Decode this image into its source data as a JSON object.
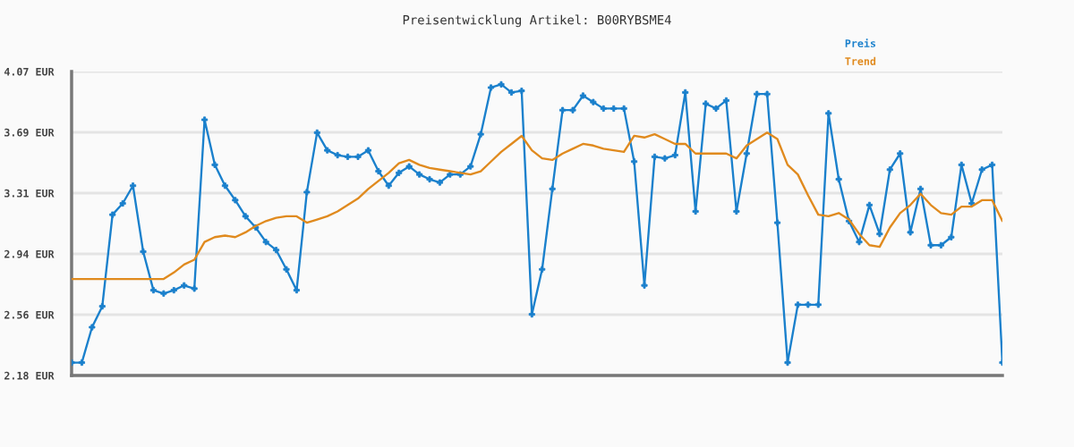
{
  "chart_data": {
    "type": "line",
    "title": "Preisentwicklung Artikel: B00RYBSME4",
    "categories": [
      null,
      null,
      null,
      null,
      null,
      null,
      null,
      null,
      null,
      null,
      null,
      null,
      null,
      null,
      null,
      null,
      null,
      null,
      null,
      null,
      null,
      null,
      null,
      null,
      null,
      null,
      null,
      null,
      null,
      null,
      null,
      null,
      null,
      null,
      null,
      null,
      null,
      null,
      null,
      null,
      null,
      null,
      null,
      null,
      null,
      null,
      null,
      null,
      null,
      null,
      null,
      null,
      null,
      null,
      null,
      null,
      null,
      null,
      null,
      null,
      null,
      null,
      null,
      null,
      null,
      null,
      null,
      null,
      null,
      null,
      null,
      null,
      null,
      null,
      null,
      null,
      null,
      null,
      null,
      null,
      null,
      null,
      null,
      null,
      null,
      null,
      null,
      null,
      null,
      null,
      null,
      null
    ],
    "series": [
      {
        "name": "Preis",
        "color": "#1a80cc",
        "marker": "cross",
        "values": [
          2.26,
          2.26,
          2.48,
          2.61,
          3.18,
          3.25,
          3.36,
          2.95,
          2.71,
          2.69,
          2.71,
          2.74,
          2.72,
          3.77,
          3.49,
          3.36,
          3.27,
          3.17,
          3.1,
          3.01,
          2.96,
          2.84,
          2.71,
          3.32,
          3.69,
          3.58,
          3.55,
          3.54,
          3.54,
          3.58,
          3.45,
          3.36,
          3.44,
          3.48,
          3.43,
          3.4,
          3.38,
          3.43,
          3.43,
          3.48,
          3.68,
          3.97,
          3.99,
          3.94,
          3.95,
          2.56,
          2.84,
          3.34,
          3.83,
          3.83,
          3.92,
          3.88,
          3.84,
          3.84,
          3.84,
          3.51,
          2.74,
          3.54,
          3.53,
          3.55,
          3.94,
          3.2,
          3.87,
          3.84,
          3.89,
          3.2,
          3.56,
          3.93,
          3.93,
          3.13,
          2.26,
          2.62,
          2.62,
          2.62,
          3.81,
          3.4,
          3.14,
          3.01,
          3.24,
          3.06,
          3.46,
          3.56,
          3.07,
          3.34,
          2.99,
          2.99,
          3.04,
          3.49,
          3.25,
          3.46,
          3.49,
          2.26
        ]
      },
      {
        "name": "Trend",
        "color": "#e08a1e",
        "marker": "none",
        "values": [
          2.78,
          2.78,
          2.78,
          2.78,
          2.78,
          2.78,
          2.78,
          2.78,
          2.78,
          2.78,
          2.82,
          2.87,
          2.9,
          3.01,
          3.04,
          3.05,
          3.04,
          3.07,
          3.11,
          3.14,
          3.16,
          3.17,
          3.17,
          3.13,
          3.15,
          3.17,
          3.2,
          3.24,
          3.28,
          3.34,
          3.39,
          3.44,
          3.5,
          3.52,
          3.49,
          3.47,
          3.46,
          3.45,
          3.44,
          3.43,
          3.45,
          3.51,
          3.57,
          3.62,
          3.67,
          3.58,
          3.53,
          3.52,
          3.56,
          3.59,
          3.62,
          3.61,
          3.59,
          3.58,
          3.57,
          3.67,
          3.66,
          3.68,
          3.65,
          3.62,
          3.62,
          3.56,
          3.56,
          3.56,
          3.56,
          3.53,
          3.61,
          3.65,
          3.69,
          3.65,
          3.49,
          3.43,
          3.3,
          3.18,
          3.17,
          3.19,
          3.15,
          3.06,
          2.99,
          2.98,
          3.1,
          3.19,
          3.24,
          3.31,
          3.24,
          3.19,
          3.18,
          3.23,
          3.23,
          3.27,
          3.27,
          3.14
        ]
      }
    ],
    "ylim": [
      2.18,
      4.07
    ],
    "yticks": [
      {
        "value": 2.18,
        "label": "2.18 EUR"
      },
      {
        "value": 2.558,
        "label": "2.56 EUR"
      },
      {
        "value": 2.936,
        "label": "2.94 EUR"
      },
      {
        "value": 3.314,
        "label": "3.31 EUR"
      },
      {
        "value": 3.692,
        "label": "3.69 EUR"
      },
      {
        "value": 4.07,
        "label": "4.07 EUR"
      }
    ],
    "grid": "y",
    "legend": "top right",
    "tick_labels": "y",
    "line_style": "solid"
  }
}
